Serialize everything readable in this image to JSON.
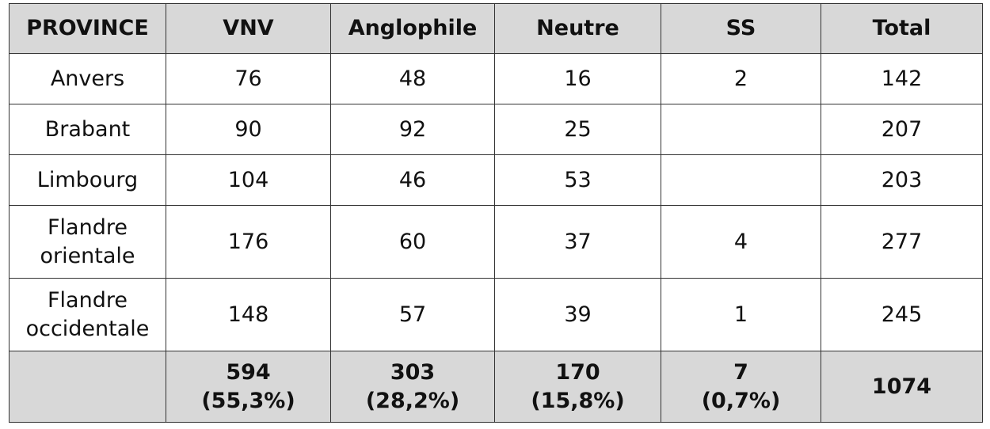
{
  "table": {
    "header": [
      "PROVINCE",
      "VNV",
      "Anglophile",
      "Neutre",
      "SS",
      "Total"
    ],
    "rows": [
      [
        "Anvers",
        76,
        48,
        16,
        2,
        142
      ],
      [
        "Brabant",
        90,
        92,
        25,
        null,
        207
      ],
      [
        "Limbourg",
        104,
        46,
        53,
        null,
        203
      ],
      [
        "Flandre orientale",
        176,
        60,
        37,
        4,
        277
      ],
      [
        "Flandre occidentale",
        148,
        57,
        39,
        1,
        245
      ]
    ],
    "footer": [
      null,
      {
        "total": 594,
        "share": "(55,3%)"
      },
      {
        "total": 303,
        "share": "(28,2%)"
      },
      {
        "total": 170,
        "share": "(15,8%)"
      },
      {
        "total": 7,
        "share": "(0,7%)"
      },
      {
        "total": 1074
      }
    ]
  }
}
